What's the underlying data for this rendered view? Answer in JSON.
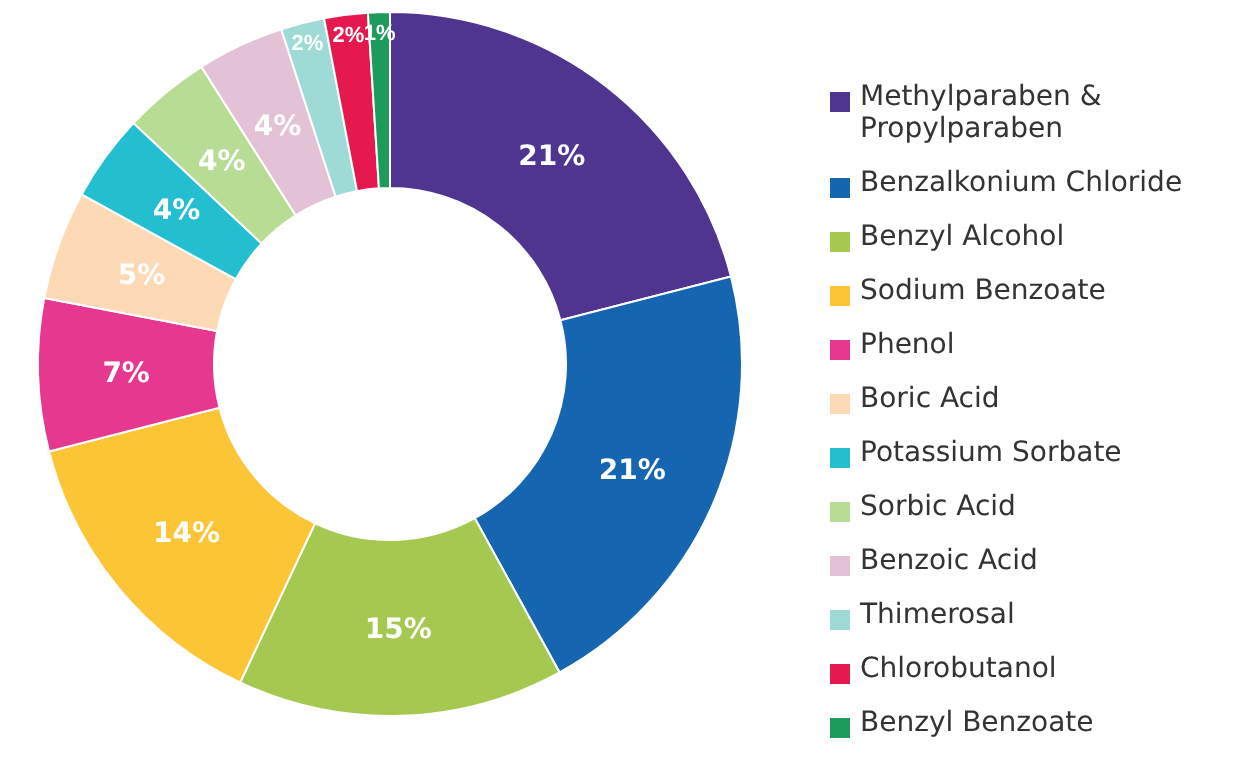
{
  "chart_data": {
    "type": "donut",
    "categories": [
      "Methylparaben & Propylparaben",
      "Benzalkonium Chloride",
      "Benzyl Alcohol",
      "Sodium Benzoate",
      "Phenol",
      "Boric Acid",
      "Potassium Sorbate",
      "Sorbic Acid",
      "Benzoic Acid",
      "Thimerosal",
      "Chlorobutanol",
      "Benzyl Benzoate"
    ],
    "values": [
      21,
      21,
      15,
      14,
      7,
      5,
      4,
      4,
      4,
      2,
      2,
      1
    ],
    "colors": [
      "#4f3590",
      "#1565b0",
      "#a5c850",
      "#fbc535",
      "#e6388f",
      "#fdd9b5",
      "#23bfd0",
      "#b7dc94",
      "#e4c2d6",
      "#9edbd6",
      "#e6194e",
      "#1d9b5a"
    ],
    "value_labels": [
      "21%",
      "21%",
      "15%",
      "14%",
      "7%",
      "5%",
      "4%",
      "4%",
      "4%",
      "2%",
      "2%",
      "1%"
    ],
    "legend": "right"
  }
}
